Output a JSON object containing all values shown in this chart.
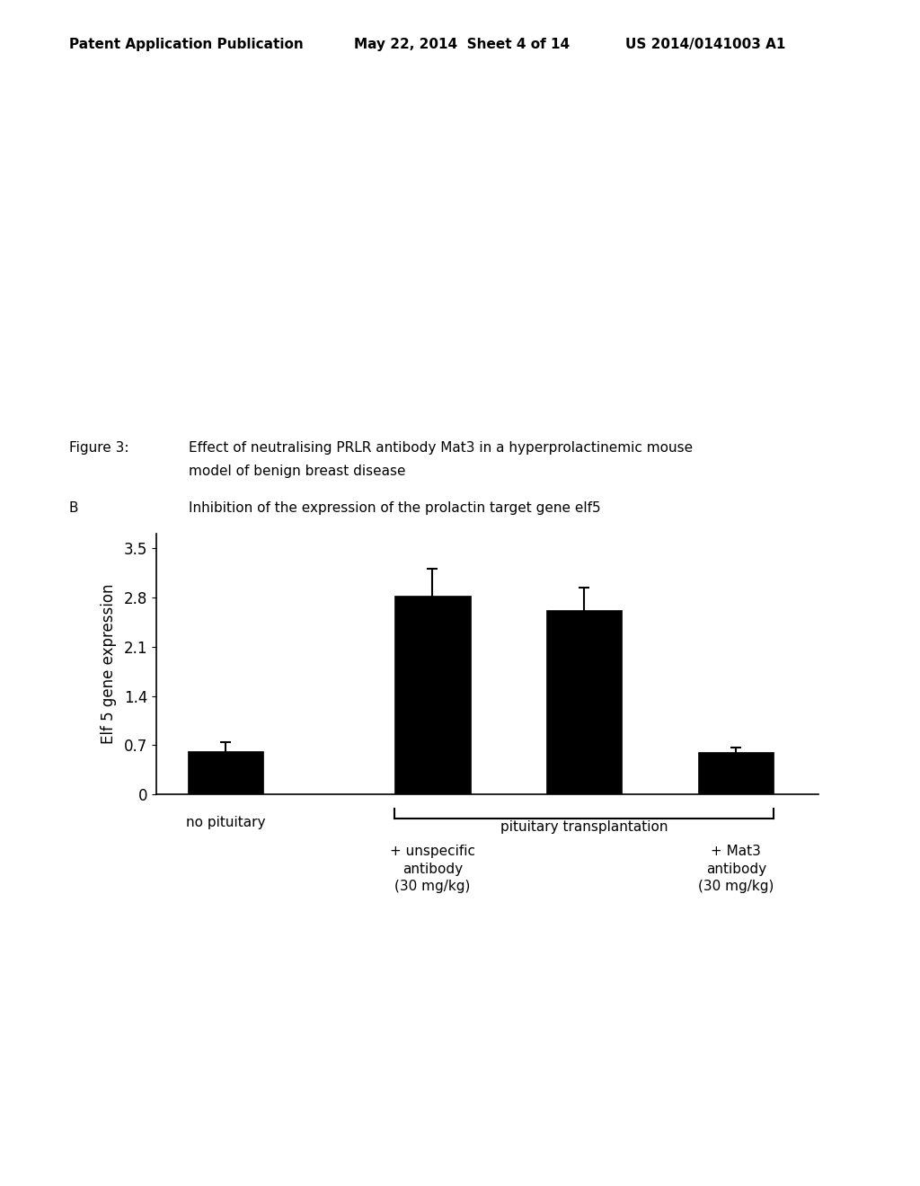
{
  "header_left": "Patent Application Publication",
  "header_middle": "May 22, 2014  Sheet 4 of 14",
  "header_right": "US 2014/0141003 A1",
  "figure_label": "Figure 3:",
  "figure_text_line1": "Effect of neutralising PRLR antibody Mat3 in a hyperprolactinemic mouse",
  "figure_text_line2": "model of benign breast disease",
  "panel_label": "B",
  "panel_text": "Inhibition of the expression of the prolactin target gene elf5",
  "bar_values": [
    0.62,
    2.82,
    2.62,
    0.6
  ],
  "bar_errors": [
    0.12,
    0.38,
    0.32,
    0.07
  ],
  "bar_color": "#000000",
  "ylabel": "Elf 5 gene expression",
  "yticks": [
    0,
    0.7,
    1.4,
    2.1,
    2.8,
    3.5
  ],
  "ylim": [
    0,
    3.7
  ],
  "bar_width": 0.55,
  "x_positions": [
    0,
    1.5,
    2.6,
    3.7
  ],
  "background_color": "#ffffff",
  "bar_edge_color": "#000000",
  "error_cap_size": 4,
  "error_linewidth": 1.5,
  "header_fontsize": 11,
  "body_fontsize": 11,
  "tick_fontsize": 12,
  "ylabel_fontsize": 12
}
